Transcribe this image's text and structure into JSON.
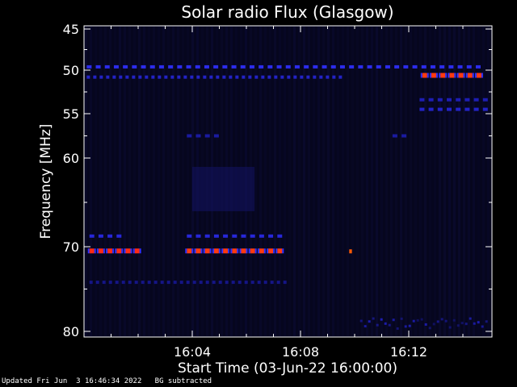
{
  "chart_data": {
    "type": "heatmap",
    "title": "Solar radio Flux (Glasgow)",
    "xlabel": "Start Time (03-Jun-22 16:00:00)",
    "ylabel": "Frequency [MHz]",
    "x_unit": "minutes after 16:00",
    "xlim": [
      0,
      15
    ],
    "ylim": [
      45,
      80
    ],
    "x_ticks": [
      {
        "value": 4,
        "label": "16:04"
      },
      {
        "value": 8,
        "label": "16:08"
      },
      {
        "value": 12,
        "label": "16:12"
      }
    ],
    "y_ticks": [
      {
        "value": 45,
        "label": "45"
      },
      {
        "value": 50,
        "label": "50"
      },
      {
        "value": 55,
        "label": "55"
      },
      {
        "value": 60,
        "label": "60"
      },
      {
        "value": 70,
        "label": "70"
      },
      {
        "value": 80,
        "label": "80"
      }
    ],
    "colors": {
      "background": "#000000",
      "plot_background": "#06061e",
      "frame": "#ffffff"
    },
    "intensity_scale": [
      "#000020",
      "#1a1aa0",
      "#3030ff",
      "#ff6a00",
      "#ff1a1a"
    ],
    "features": [
      {
        "freq_mhz": 49.6,
        "start_min": 0.1,
        "end_min": 14.9,
        "intensity": 0.45,
        "pattern": "dashed"
      },
      {
        "freq_mhz": 50.8,
        "start_min": 0.1,
        "end_min": 9.6,
        "intensity": 0.35,
        "pattern": "dotted"
      },
      {
        "freq_mhz": 50.6,
        "start_min": 12.5,
        "end_min": 14.9,
        "intensity": 0.9,
        "pattern": "dashed"
      },
      {
        "freq_mhz": 53.4,
        "start_min": 12.4,
        "end_min": 14.9,
        "intensity": 0.3,
        "pattern": "dashed"
      },
      {
        "freq_mhz": 54.5,
        "start_min": 12.4,
        "end_min": 14.9,
        "intensity": 0.35,
        "pattern": "dashed"
      },
      {
        "freq_mhz": 57.5,
        "start_min": 3.8,
        "end_min": 5.2,
        "intensity": 0.25,
        "pattern": "dashed"
      },
      {
        "freq_mhz": 57.5,
        "start_min": 11.4,
        "end_min": 12.0,
        "intensity": 0.25,
        "pattern": "dashed"
      },
      {
        "freq_mhz": 68.8,
        "start_min": 0.2,
        "end_min": 1.5,
        "intensity": 0.4,
        "pattern": "dashed"
      },
      {
        "freq_mhz": 68.8,
        "start_min": 3.8,
        "end_min": 7.5,
        "intensity": 0.4,
        "pattern": "dashed"
      },
      {
        "freq_mhz": 70.5,
        "start_min": 0.2,
        "end_min": 2.1,
        "intensity": 0.95,
        "pattern": "dashed"
      },
      {
        "freq_mhz": 70.5,
        "start_min": 3.8,
        "end_min": 7.5,
        "intensity": 0.9,
        "pattern": "dashed"
      },
      {
        "freq_mhz": 70.5,
        "start_min": 9.8,
        "end_min": 9.9,
        "intensity": 0.8,
        "pattern": "solid"
      },
      {
        "freq_mhz": 74.2,
        "start_min": 0.2,
        "end_min": 7.5,
        "intensity": 0.2,
        "pattern": "dotted"
      },
      {
        "freq_mhz": 79.0,
        "start_min": 10.2,
        "end_min": 14.9,
        "intensity": 0.3,
        "pattern": "noisy"
      }
    ]
  },
  "footer": {
    "updated": "Updated Fri Jun  3 16:46:34 2022",
    "note": "BG subtracted"
  }
}
